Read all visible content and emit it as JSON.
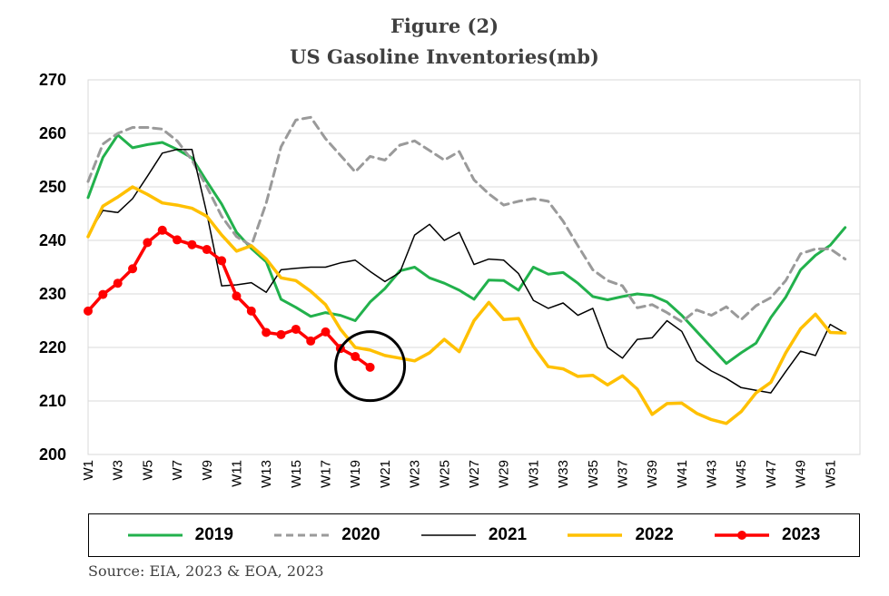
{
  "chart_data": {
    "type": "line",
    "title": "Figure (2)",
    "subtitle": "US Gasoline Inventories(mb)",
    "source": "Source: EIA, 2023 & EOA, 2023",
    "ylim": [
      200,
      270
    ],
    "yticks": [
      200,
      210,
      220,
      230,
      240,
      250,
      260,
      270
    ],
    "xlim": [
      1,
      53
    ],
    "xtick_labels": [
      "W1",
      "W3",
      "W5",
      "W7",
      "W9",
      "W11",
      "W13",
      "W15",
      "W17",
      "W19",
      "W21",
      "W23",
      "W25",
      "W27",
      "W29",
      "W31",
      "W33",
      "W35",
      "W37",
      "W39",
      "W41",
      "W43",
      "W45",
      "W47",
      "W49",
      "W51"
    ],
    "xtick_weeks": [
      1,
      3,
      5,
      7,
      9,
      11,
      13,
      15,
      17,
      19,
      21,
      23,
      25,
      27,
      29,
      31,
      33,
      35,
      37,
      39,
      41,
      43,
      45,
      47,
      49,
      51
    ],
    "grid": "horizontal",
    "legend_position": "bottom",
    "series": [
      {
        "name": "2019",
        "color": "#22b14c",
        "style": "solid",
        "width": 3,
        "markers": false,
        "values": [
          248,
          255.5,
          259.7,
          257.3,
          257.9,
          258.3,
          257,
          255.4,
          251,
          246.8,
          241.5,
          238.5,
          236,
          229,
          227.5,
          225.8,
          226.5,
          226,
          225,
          228.5,
          231,
          234.3,
          235,
          233,
          232,
          230.7,
          229,
          232.6,
          232.5,
          230.7,
          235,
          233.7,
          234,
          232,
          229.5,
          228.9,
          229.5,
          230,
          229.7,
          228.5,
          226,
          223,
          220,
          217,
          219,
          220.8,
          225.6,
          229.4,
          234.5,
          237.2,
          239.1,
          242.4
        ]
      },
      {
        "name": "2020",
        "color": "#9a9a9a",
        "style": "dashed",
        "width": 3,
        "markers": false,
        "values": [
          251,
          258,
          260,
          261.1,
          261.1,
          260.8,
          258.6,
          255,
          250,
          244.5,
          240.7,
          239,
          247,
          257.5,
          262.5,
          263,
          259,
          255.9,
          252.8,
          255.7,
          255,
          257.8,
          258.6,
          256.8,
          255,
          256.6,
          251.3,
          248.7,
          246.6,
          247.3,
          247.8,
          247.3,
          243.6,
          239,
          234.5,
          232.5,
          231.5,
          227.4,
          228,
          226.5,
          224.8,
          227,
          226,
          227.6,
          225.2,
          227.8,
          229.3,
          232.5,
          237.5,
          238.4,
          238.4,
          236.5
        ]
      },
      {
        "name": "2021",
        "color": "#000000",
        "style": "solid",
        "width": 1.5,
        "markers": false,
        "values": [
          241,
          245.6,
          245.2,
          247.8,
          252,
          256.3,
          257,
          257,
          245,
          231.5,
          231.7,
          232.1,
          230.3,
          234.5,
          234.8,
          235,
          235,
          235.8,
          236.3,
          234.2,
          232.3,
          234,
          241,
          243,
          240,
          241.5,
          235.5,
          236.5,
          236.3,
          233.8,
          228.8,
          227.3,
          228.3,
          226,
          227.3,
          220,
          218,
          221.5,
          221.8,
          225,
          223,
          217.5,
          215.6,
          214.2,
          212.5,
          212,
          211.5,
          215.5,
          219.3,
          218.5,
          224.3,
          222.7
        ]
      },
      {
        "name": "2022",
        "color": "#ffc000",
        "style": "solid",
        "width": 3.5,
        "markers": false,
        "values": [
          240.7,
          246.4,
          248.1,
          250,
          248.6,
          247,
          246.6,
          246,
          244.5,
          241,
          238,
          239,
          236.5,
          233,
          232.5,
          230.5,
          228,
          223.4,
          220,
          219.5,
          218.5,
          218,
          217.5,
          219,
          221.5,
          219.2,
          225,
          228.4,
          225.2,
          225.4,
          220.2,
          216.4,
          216,
          214.6,
          214.8,
          213,
          214.7,
          212.2,
          207.5,
          209.5,
          209.6,
          207.7,
          206.5,
          205.8,
          208,
          211.5,
          213.5,
          219,
          223.5,
          226.2,
          222.8,
          222.7
        ]
      },
      {
        "name": "2023",
        "color": "#ff0000",
        "style": "solid",
        "width": 3.5,
        "markers": true,
        "values": [
          226.8,
          229.9,
          232,
          234.7,
          239.6,
          241.9,
          240.1,
          239.2,
          238.3,
          236.2,
          229.6,
          226.8,
          222.8,
          222.4,
          223.4,
          221.2,
          222.9,
          219.8,
          218.3,
          216.3
        ]
      }
    ],
    "annotation": {
      "type": "circle",
      "week": 20,
      "value": 216.5
    }
  }
}
